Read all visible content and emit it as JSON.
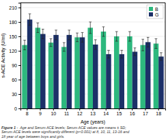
{
  "chart_data": {
    "type": "bar",
    "categories": [
      "8",
      "9",
      "10",
      "11",
      "12",
      "13",
      "14",
      "15",
      "16",
      "17",
      "18"
    ],
    "series": [
      {
        "name": "B",
        "color": "#2db87e",
        "values": [
          132,
          168,
          137,
          128,
          148,
          168,
          160,
          150,
          150,
          132,
          135
        ],
        "errors": [
          10,
          10,
          8,
          9,
          9,
          12,
          10,
          10,
          10,
          12,
          10
        ]
      },
      {
        "name": "G",
        "color": "#1c3068",
        "values": [
          185,
          155,
          153,
          153,
          148,
          133,
          113,
          113,
          118,
          138,
          108
        ],
        "errors": [
          12,
          10,
          10,
          10,
          10,
          10,
          8,
          8,
          8,
          10,
          8
        ]
      }
    ],
    "xlabel": "Age (years)",
    "ylabel": "s-ACE Activity (U/ml)",
    "ylim": [
      0,
      220
    ],
    "yticks": [
      0,
      30,
      60,
      90,
      120,
      150,
      180,
      210
    ],
    "grid": true,
    "legend": "upper right",
    "annotations": [
      "Figure 1 - ",
      "Age and Serum ACE levels; Serum ACE values are means ± SD;",
      "Serum ACE levels were significantly different (p<0.001) at 8, 10, 11, 13-16 and",
      "18 year of age between boys and girls."
    ]
  }
}
